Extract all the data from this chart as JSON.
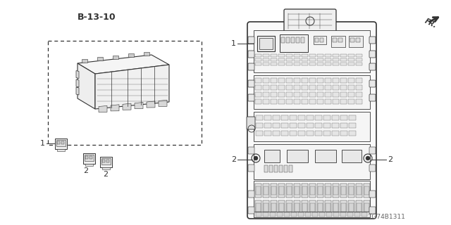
{
  "bg_color": "#ffffff",
  "title_code": "TG74B1311",
  "fr_label": "FR.",
  "ref_label": "B-13-10",
  "label_1": "1",
  "label_2": "2",
  "fig_width": 6.4,
  "fig_height": 3.2,
  "dpi": 100,
  "line_color": "#333333",
  "light_gray": "#cccccc",
  "mid_gray": "#888888"
}
